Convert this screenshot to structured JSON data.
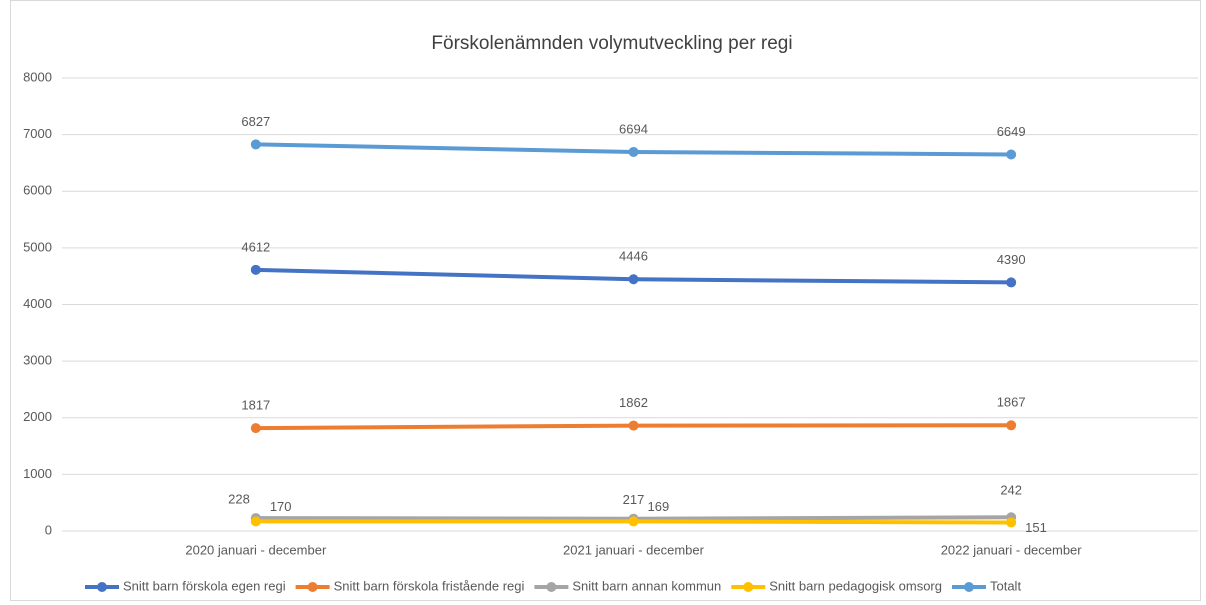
{
  "chart_data": {
    "type": "line",
    "title": "Förskolenämnden volymutveckling per regi",
    "categories": [
      "2020 januari - december",
      "2021 januari - december",
      "2022 januari - december"
    ],
    "series": [
      {
        "name": "Snitt barn förskola egen regi",
        "color": "#4472c4",
        "values": [
          4612,
          4446,
          4390
        ]
      },
      {
        "name": "Snitt barn förskola fristående regi",
        "color": "#ed7d31",
        "values": [
          1817,
          1862,
          1867
        ]
      },
      {
        "name": "Snitt barn annan kommun",
        "color": "#a5a5a5",
        "values": [
          228,
          217,
          242
        ]
      },
      {
        "name": "Snitt barn pedagogisk omsorg",
        "color": "#ffc000",
        "values": [
          170,
          169,
          151
        ]
      },
      {
        "name": "Totalt",
        "color": "#5b9bd5",
        "values": [
          6827,
          6694,
          6649
        ]
      }
    ],
    "ylim": [
      0,
      8000
    ],
    "yticks": [
      0,
      1000,
      2000,
      3000,
      4000,
      5000,
      6000,
      7000,
      8000
    ],
    "grid": true,
    "legend": "bottom",
    "data_labels": true
  }
}
